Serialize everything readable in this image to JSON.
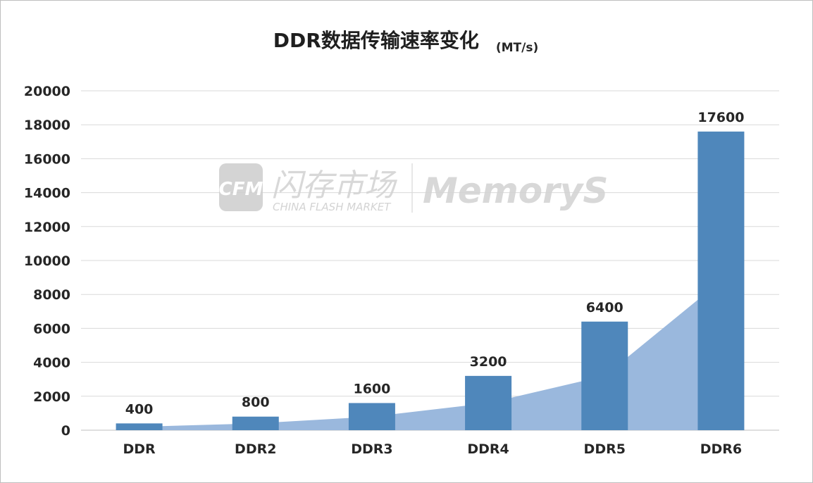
{
  "chart_data": {
    "type": "bar",
    "title": "DDR数据传输速率变化",
    "unit": "(MT/s)",
    "categories": [
      "DDR",
      "DDR2",
      "DDR3",
      "DDR4",
      "DDR5",
      "DDR6"
    ],
    "values": [
      400,
      800,
      1600,
      3200,
      6400,
      17600
    ],
    "ylim": [
      0,
      20000
    ],
    "yticks": [
      0,
      2000,
      4000,
      6000,
      8000,
      10000,
      12000,
      14000,
      16000,
      18000,
      20000
    ],
    "grid": true,
    "bar_color": "#4f87bb",
    "area_color": "#9ab8dd",
    "area_values": [
      200,
      400,
      800,
      1600,
      3200,
      8800
    ]
  },
  "watermark": {
    "logo_text": "CFM",
    "cn_name": "闪存市场",
    "en_name": "CHINA FLASH MARKET",
    "brand": "MemoryS"
  }
}
